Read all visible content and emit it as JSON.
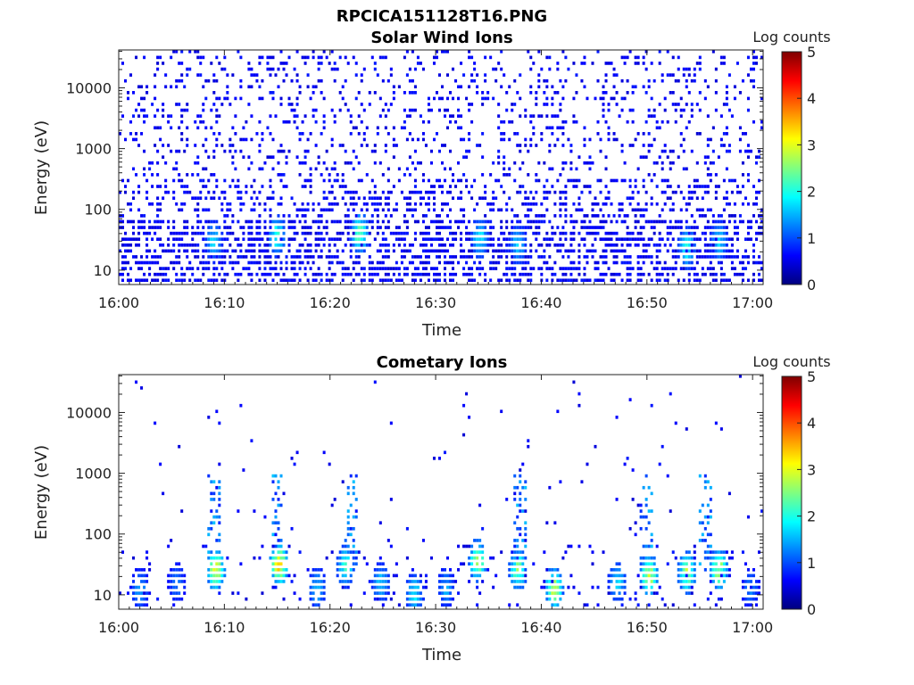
{
  "figure": {
    "title": "RPCICA151128T16.PNG"
  },
  "chart_data": [
    {
      "type": "heatmap",
      "title": "Solar Wind Ions",
      "xlabel": "Time",
      "ylabel": "Energy (eV)",
      "x_ticks": [
        "16:00",
        "16:10",
        "16:20",
        "16:30",
        "16:40",
        "16:50",
        "17:00"
      ],
      "x_range_minutes": [
        0,
        61
      ],
      "y_scale": "log",
      "y_ticks": [
        {
          "value": 10,
          "label": "10"
        },
        {
          "value": 100,
          "label": "100"
        },
        {
          "value": 1000,
          "label": "1000"
        },
        {
          "value": 10000,
          "label": "10000"
        }
      ],
      "y_range": [
        5.8,
        42000
      ],
      "colorbar": {
        "label": "Log counts",
        "range": [
          0,
          5
        ],
        "ticks": [
          "0",
          "1",
          "2",
          "3",
          "4",
          "5"
        ],
        "colormap": "jet"
      },
      "noise_density": 0.2,
      "low_energy_density": 0.55,
      "bursts": [
        {
          "t": 9.0,
          "e": 28,
          "level": 1.5
        },
        {
          "t": 15.0,
          "e": 35,
          "level": 1.9
        },
        {
          "t": 22.8,
          "e": 38,
          "level": 2.3
        },
        {
          "t": 34.2,
          "e": 32,
          "level": 1.6
        },
        {
          "t": 37.8,
          "e": 25,
          "level": 1.4
        },
        {
          "t": 53.8,
          "e": 22,
          "level": 1.8
        },
        {
          "t": 56.8,
          "e": 28,
          "level": 1.5
        }
      ]
    },
    {
      "type": "heatmap",
      "title": "Cometary Ions",
      "xlabel": "Time",
      "ylabel": "Energy (eV)",
      "x_ticks": [
        "16:00",
        "16:10",
        "16:20",
        "16:30",
        "16:40",
        "16:50",
        "17:00"
      ],
      "x_range_minutes": [
        0,
        61
      ],
      "y_scale": "log",
      "y_ticks": [
        {
          "value": 10,
          "label": "10"
        },
        {
          "value": 100,
          "label": "100"
        },
        {
          "value": 1000,
          "label": "1000"
        },
        {
          "value": 10000,
          "label": "10000"
        }
      ],
      "y_range": [
        5.8,
        42000
      ],
      "colorbar": {
        "label": "Log counts",
        "range": [
          0,
          5
        ],
        "ticks": [
          "0",
          "1",
          "2",
          "3",
          "4",
          "5"
        ],
        "colormap": "jet"
      },
      "noise_density": 0.012,
      "low_energy_density": 0.08,
      "bursts": [
        {
          "t": 2.0,
          "e": 12,
          "level": 1.2
        },
        {
          "t": 5.5,
          "e": 15,
          "level": 1.0
        },
        {
          "t": 9.2,
          "e": 25,
          "level": 3.0
        },
        {
          "t": 15.2,
          "e": 30,
          "level": 3.4
        },
        {
          "t": 18.8,
          "e": 12,
          "level": 1.4
        },
        {
          "t": 21.5,
          "e": 28,
          "level": 2.0
        },
        {
          "t": 24.8,
          "e": 15,
          "level": 1.4
        },
        {
          "t": 28.0,
          "e": 10,
          "level": 1.6
        },
        {
          "t": 31.0,
          "e": 12,
          "level": 1.2
        },
        {
          "t": 34.0,
          "e": 35,
          "level": 2.6
        },
        {
          "t": 37.8,
          "e": 25,
          "level": 2.4
        },
        {
          "t": 41.2,
          "e": 12,
          "level": 2.8
        },
        {
          "t": 47.2,
          "e": 15,
          "level": 1.6
        },
        {
          "t": 50.2,
          "e": 20,
          "level": 2.8
        },
        {
          "t": 53.8,
          "e": 22,
          "level": 2.6
        },
        {
          "t": 56.8,
          "e": 25,
          "level": 2.7
        },
        {
          "t": 59.8,
          "e": 12,
          "level": 1.0
        }
      ],
      "vertical_streaks": [
        9.0,
        15.0,
        22.0,
        38.0,
        50.0,
        55.5
      ]
    }
  ]
}
